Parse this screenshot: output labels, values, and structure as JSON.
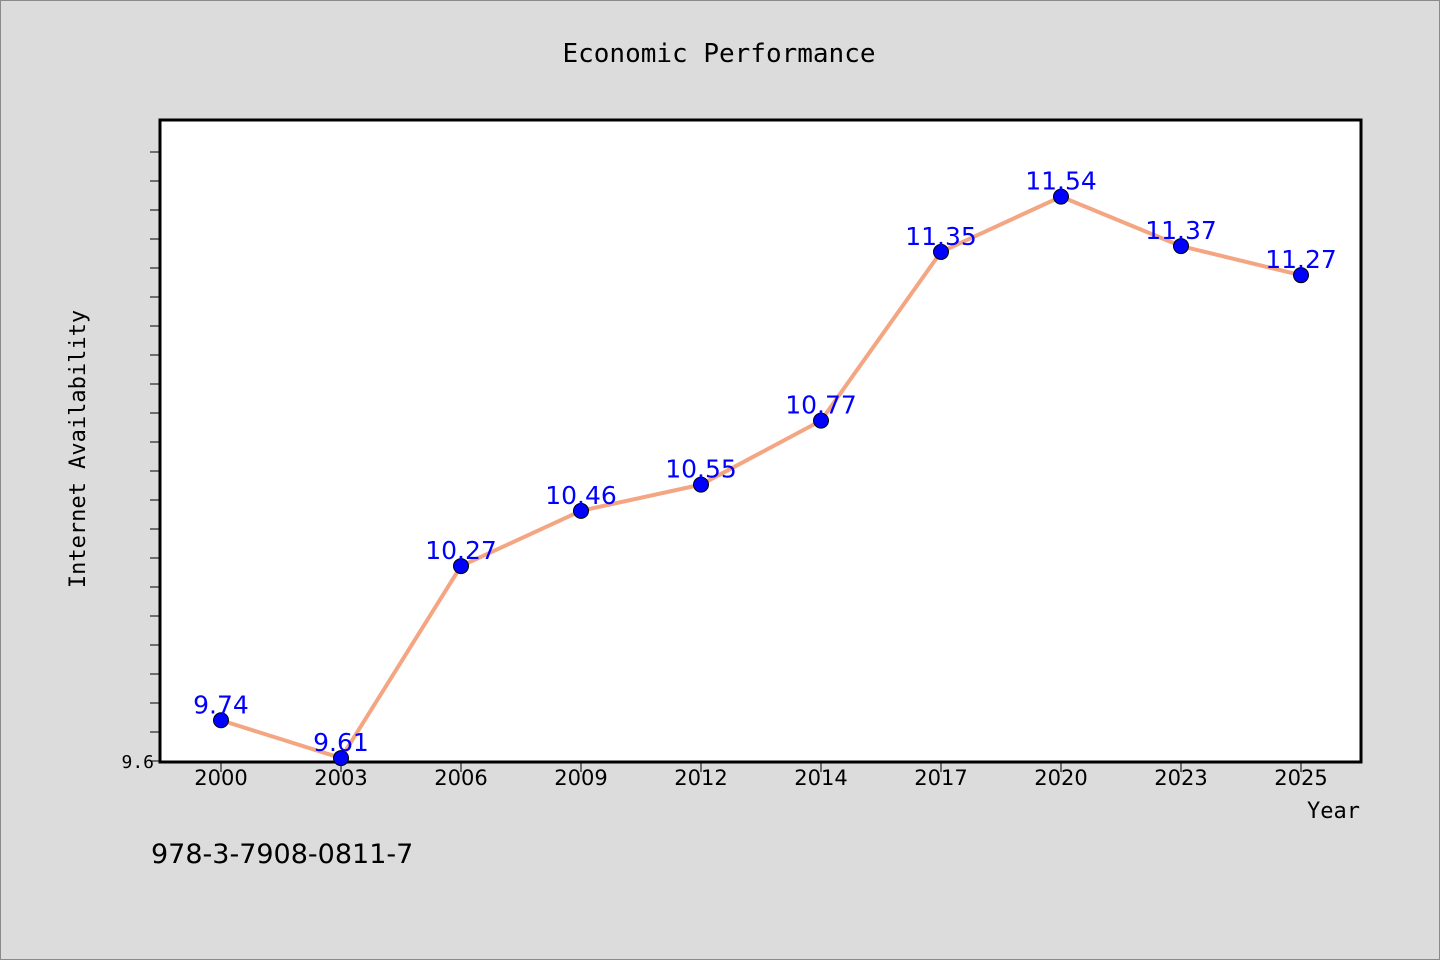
{
  "chart_data": {
    "type": "line",
    "title": "Economic Performance",
    "xlabel": "Year",
    "ylabel": "Internet Availability",
    "categories": [
      "2000",
      "2003",
      "2006",
      "2009",
      "2012",
      "2014",
      "2017",
      "2020",
      "2023",
      "2025"
    ],
    "series": [
      {
        "values": [
          9.74,
          9.61,
          10.27,
          10.46,
          10.55,
          10.77,
          11.35,
          11.54,
          11.37,
          11.27
        ],
        "line_color": "#f4a582",
        "marker_color": "#0000ff"
      }
    ],
    "data_labels": [
      "9.74",
      "9.61",
      "10.27",
      "10.46",
      "10.55",
      "10.77",
      "11.35",
      "11.54",
      "11.37",
      "11.27"
    ],
    "y_tick_labels": [
      "9.6"
    ],
    "ylim": [
      9.6,
      11.8
    ],
    "grid": false,
    "legend": "none"
  },
  "footer_code": "978-3-7908-0811-7",
  "colors": {
    "background": "#dcdcdc",
    "plot_background": "#ffffff",
    "line": "#f4a582",
    "marker": "#0000ff",
    "data_label": "#0000ff"
  }
}
